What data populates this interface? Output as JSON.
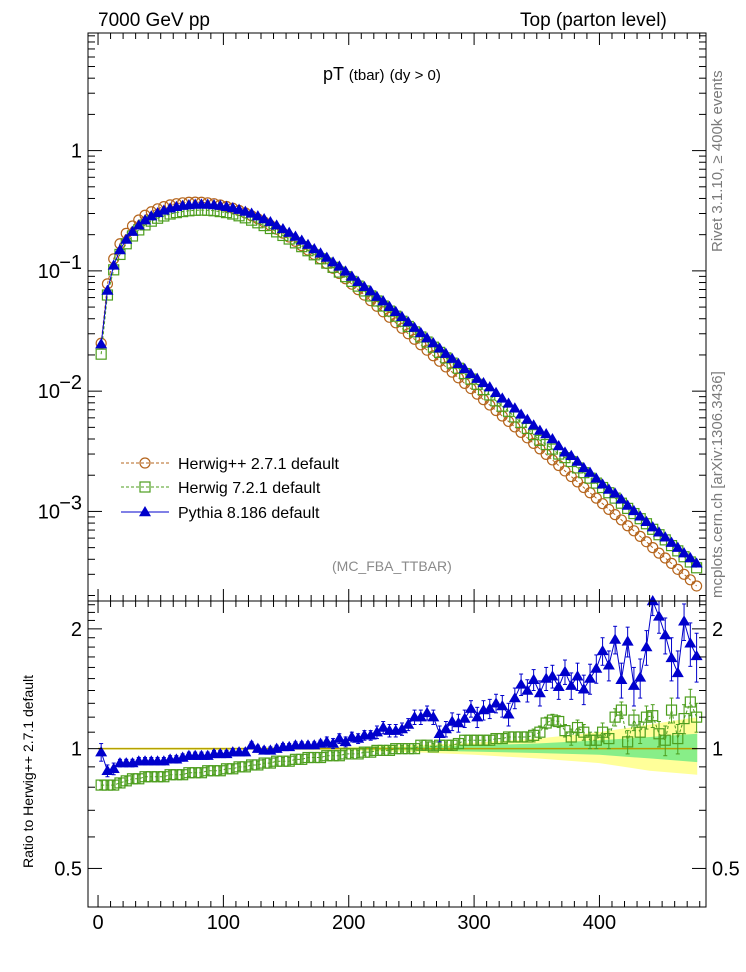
{
  "header": {
    "left": "7000 GeV pp",
    "right": "Top (parton level)"
  },
  "side": {
    "rivet": "Rivet 3.1.10, ≥ 400k events",
    "mcplots": "mcplots.cern.ch [arXiv:1306.3436]"
  },
  "plot": {
    "title_main": "pT",
    "title_tbar": "(tbar)",
    "title_cut": "(dy > 0)",
    "analysis": "(MC_FBA_TTBAR)",
    "ratio_ylabel": "Ratio to Herwig++ 2.7.1 default"
  },
  "colors": {
    "herwig_pp": "#b5651d",
    "herwig7": "#4d9e1e",
    "pythia": "#0000cc",
    "band_yellow": "#ffff99",
    "band_green": "#88ee88"
  },
  "chart_data": [
    {
      "type": "scatter",
      "panel": "main",
      "yscale": "log",
      "xlim": [
        -8,
        485
      ],
      "ylim": [
        0.00018,
        9.5
      ],
      "xticks": [
        0,
        100,
        200,
        300,
        400
      ],
      "yticks": [
        {
          "value": 1,
          "label": "1"
        },
        {
          "value": 0.1,
          "label": "10",
          "exp": "−1"
        },
        {
          "value": 0.01,
          "label": "10",
          "exp": "−2"
        },
        {
          "value": 0.001,
          "label": "10",
          "exp": "−3"
        }
      ],
      "x": [
        2.5,
        7.5,
        12.5,
        17.5,
        22.5,
        27.5,
        32.5,
        37.5,
        42.5,
        47.5,
        52.5,
        57.5,
        62.5,
        67.5,
        72.5,
        77.5,
        82.5,
        87.5,
        92.5,
        97.5,
        102.5,
        107.5,
        112.5,
        117.5,
        122.5,
        127.5,
        132.5,
        137.5,
        142.5,
        147.5,
        152.5,
        157.5,
        162.5,
        167.5,
        172.5,
        177.5,
        182.5,
        187.5,
        192.5,
        197.5,
        202.5,
        207.5,
        212.5,
        217.5,
        222.5,
        227.5,
        232.5,
        237.5,
        242.5,
        247.5,
        252.5,
        257.5,
        262.5,
        267.5,
        272.5,
        277.5,
        282.5,
        287.5,
        292.5,
        297.5,
        302.5,
        307.5,
        312.5,
        317.5,
        322.5,
        327.5,
        332.5,
        337.5,
        342.5,
        347.5,
        352.5,
        357.5,
        362.5,
        367.5,
        372.5,
        377.5,
        382.5,
        387.5,
        392.5,
        397.5,
        402.5,
        407.5,
        412.5,
        417.5,
        422.5,
        427.5,
        432.5,
        437.5,
        442.5,
        447.5,
        452.5,
        457.5,
        462.5,
        467.5,
        472.5,
        477.5
      ],
      "series": [
        {
          "name": "Herwig++ 2.7.1 default",
          "marker": "circle",
          "values": [
            0.025,
            0.078,
            0.126,
            0.168,
            0.205,
            0.236,
            0.265,
            0.29,
            0.31,
            0.328,
            0.342,
            0.354,
            0.362,
            0.368,
            0.372,
            0.373,
            0.372,
            0.368,
            0.362,
            0.353,
            0.343,
            0.332,
            0.318,
            0.303,
            0.287,
            0.271,
            0.255,
            0.239,
            0.222,
            0.206,
            0.191,
            0.176,
            0.162,
            0.149,
            0.137,
            0.126,
            0.115,
            0.105,
            0.095,
            0.086,
            0.0775,
            0.0698,
            0.0629,
            0.0565,
            0.0508,
            0.0457,
            0.0411,
            0.037,
            0.0333,
            0.03,
            0.027,
            0.0243,
            0.0219,
            0.0197,
            0.0177,
            0.0159,
            0.0144,
            0.0129,
            0.0116,
            0.0105,
            0.00945,
            0.0085,
            0.00766,
            0.0069,
            0.00621,
            0.0056,
            0.00504,
            0.00454,
            0.00409,
            0.00368,
            0.00331,
            0.00298,
            0.00268,
            0.00241,
            0.00217,
            0.00195,
            0.00176,
            0.00158,
            0.00143,
            0.00129,
            0.00116,
            0.00104,
            0.00094,
            0.00085,
            0.00076,
            0.00069,
            0.00062,
            0.00056,
            0.0005,
            0.00045,
            0.00041,
            0.00037,
            0.00033,
            0.0003,
            0.00027,
            0.00024
          ]
        },
        {
          "name": "Herwig 7.2.1 default",
          "marker": "square",
          "values": [
            0.0203,
            0.063,
            0.102,
            0.137,
            0.168,
            0.195,
            0.219,
            0.241,
            0.259,
            0.274,
            0.286,
            0.297,
            0.305,
            0.311,
            0.316,
            0.319,
            0.32,
            0.319,
            0.316,
            0.311,
            0.305,
            0.297,
            0.287,
            0.276,
            0.264,
            0.251,
            0.238,
            0.225,
            0.211,
            0.197,
            0.184,
            0.171,
            0.159,
            0.147,
            0.136,
            0.126,
            0.116,
            0.107,
            0.0977,
            0.0895,
            0.0818,
            0.0747,
            0.0681,
            0.0619,
            0.0562,
            0.051,
            0.0463,
            0.042,
            0.0381,
            0.0345,
            0.0311,
            0.0282,
            0.0256,
            0.0232,
            0.021,
            0.0189,
            0.0171,
            0.0155,
            0.014,
            0.0126,
            0.0114,
            0.0103,
            0.0093,
            0.0083,
            0.0075,
            0.0068,
            0.0061,
            0.0055,
            0.0049,
            0.00435,
            0.0039,
            0.0036,
            0.0033,
            0.003,
            0.0028,
            0.0026,
            0.0023,
            0.0021,
            0.00189,
            0.00172,
            0.00158,
            0.00143,
            0.00129,
            0.00117,
            0.00106,
            0.00096,
            0.00087,
            0.00079,
            0.00071,
            0.00064,
            0.00058,
            0.00052,
            0.00047,
            0.00042,
            0.00038,
            0.00034
          ]
        },
        {
          "name": "Pythia 8.186 default",
          "marker": "triangle",
          "values": [
            0.0246,
            0.0686,
            0.111,
            0.149,
            0.182,
            0.212,
            0.239,
            0.264,
            0.285,
            0.303,
            0.318,
            0.331,
            0.341,
            0.348,
            0.353,
            0.356,
            0.357,
            0.356,
            0.353,
            0.348,
            0.341,
            0.333,
            0.323,
            0.311,
            0.3,
            0.285,
            0.27,
            0.255,
            0.239,
            0.223,
            0.208,
            0.193,
            0.179,
            0.165,
            0.152,
            0.14,
            0.129,
            0.118,
            0.109,
            0.099,
            0.0897,
            0.0811,
            0.0737,
            0.0678,
            0.061,
            0.056,
            0.0503,
            0.0457,
            0.0415,
            0.0375,
            0.0337,
            0.0305,
            0.0276,
            0.0251,
            0.0227,
            0.0205,
            0.0186,
            0.0169,
            0.0153,
            0.0139,
            0.0127,
            0.0117,
            0.0108,
            0.0097,
            0.0087,
            0.0079,
            0.0072,
            0.0064,
            0.0058,
            0.0052,
            0.0047,
            0.0044,
            0.004,
            0.0035,
            0.0031,
            0.0029,
            0.0026,
            0.0023,
            0.0021,
            0.00188,
            0.00168,
            0.00152,
            0.00141,
            0.00126,
            0.00112,
            0.00101,
            0.00091,
            0.00082,
            0.00074,
            0.00067,
            0.00061,
            0.00055,
            0.0005,
            0.00045,
            0.00041,
            0.00037
          ]
        }
      ]
    },
    {
      "type": "scatter",
      "panel": "ratio",
      "yscale": "log",
      "ylabel": "Ratio to Herwig++ 2.7.1 default",
      "xlim": [
        -8,
        485
      ],
      "ylim": [
        0.4,
        2.35
      ],
      "xticks": [
        0,
        100,
        200,
        300,
        400
      ],
      "yticks": [
        {
          "value": 2,
          "label": "2"
        },
        {
          "value": 1,
          "label": "1"
        },
        {
          "value": 0.5,
          "label": "0.5"
        }
      ],
      "band": {
        "x": [
          0,
          100,
          200,
          250,
          300,
          350,
          400,
          440,
          478
        ],
        "yellow_lo": [
          0.995,
          0.993,
          0.99,
          0.98,
          0.965,
          0.945,
          0.92,
          0.88,
          0.86
        ],
        "yellow_hi": [
          1.005,
          1.007,
          1.01,
          1.02,
          1.035,
          1.06,
          1.1,
          1.15,
          1.2
        ],
        "green_lo": [
          0.998,
          0.997,
          0.995,
          0.99,
          0.983,
          0.975,
          0.965,
          0.945,
          0.925
        ],
        "green_hi": [
          1.002,
          1.003,
          1.005,
          1.01,
          1.02,
          1.03,
          1.05,
          1.07,
          1.09
        ]
      },
      "series": [
        {
          "name": "Herwig 7.2.1 default",
          "values": [
            0.81,
            0.81,
            0.81,
            0.82,
            0.83,
            0.84,
            0.84,
            0.85,
            0.85,
            0.85,
            0.85,
            0.86,
            0.86,
            0.86,
            0.87,
            0.87,
            0.87,
            0.88,
            0.88,
            0.88,
            0.89,
            0.89,
            0.9,
            0.9,
            0.91,
            0.91,
            0.92,
            0.92,
            0.93,
            0.93,
            0.93,
            0.94,
            0.94,
            0.95,
            0.95,
            0.95,
            0.96,
            0.96,
            0.96,
            0.97,
            0.97,
            0.97,
            0.98,
            0.98,
            0.99,
            0.99,
            0.99,
            1.0,
            1.0,
            1.0,
            1.0,
            1.02,
            1.02,
            1.01,
            1.02,
            1.02,
            1.02,
            1.03,
            1.05,
            1.05,
            1.05,
            1.05,
            1.05,
            1.06,
            1.06,
            1.07,
            1.07,
            1.07,
            1.07,
            1.08,
            1.1,
            1.16,
            1.18,
            1.17,
            1.11,
            1.07,
            1.13,
            1.1,
            1.05,
            1.05,
            1.1,
            1.06,
            1.2,
            1.25,
            1.04,
            1.18,
            1.1,
            1.2,
            1.21,
            1.09,
            1.05,
            1.25,
            1.06,
            1.19,
            1.31,
            1.2
          ],
          "errors": [
            0.02,
            0.02,
            0.02,
            0.02,
            0.02,
            0.02,
            0.02,
            0.02,
            0.02,
            0.02,
            0.02,
            0.02,
            0.02,
            0.02,
            0.02,
            0.02,
            0.02,
            0.02,
            0.02,
            0.02,
            0.02,
            0.02,
            0.02,
            0.02,
            0.02,
            0.02,
            0.02,
            0.02,
            0.02,
            0.02,
            0.02,
            0.02,
            0.02,
            0.02,
            0.02,
            0.02,
            0.02,
            0.02,
            0.02,
            0.02,
            0.02,
            0.02,
            0.02,
            0.02,
            0.02,
            0.02,
            0.02,
            0.02,
            0.02,
            0.02,
            0.02,
            0.02,
            0.02,
            0.02,
            0.02,
            0.02,
            0.03,
            0.03,
            0.03,
            0.03,
            0.03,
            0.03,
            0.03,
            0.03,
            0.03,
            0.03,
            0.03,
            0.03,
            0.03,
            0.04,
            0.04,
            0.04,
            0.04,
            0.04,
            0.04,
            0.05,
            0.05,
            0.05,
            0.05,
            0.05,
            0.06,
            0.06,
            0.06,
            0.06,
            0.07,
            0.07,
            0.07,
            0.08,
            0.08,
            0.08,
            0.09,
            0.09,
            0.09,
            0.1,
            0.1,
            0.1
          ]
        },
        {
          "name": "Pythia 8.186 default",
          "values": [
            0.98,
            0.88,
            0.89,
            0.92,
            0.92,
            0.92,
            0.93,
            0.93,
            0.93,
            0.93,
            0.93,
            0.94,
            0.94,
            0.95,
            0.96,
            0.96,
            0.96,
            0.96,
            0.97,
            0.97,
            0.97,
            0.98,
            0.98,
            0.98,
            1.02,
            1.0,
            0.99,
            0.99,
            1.0,
            1.01,
            1.01,
            1.02,
            1.02,
            1.02,
            1.02,
            1.03,
            1.04,
            1.03,
            1.06,
            1.04,
            1.07,
            1.06,
            1.08,
            1.08,
            1.1,
            1.13,
            1.11,
            1.11,
            1.12,
            1.15,
            1.2,
            1.2,
            1.23,
            1.2,
            1.09,
            1.12,
            1.17,
            1.16,
            1.19,
            1.26,
            1.2,
            1.25,
            1.26,
            1.3,
            1.28,
            1.22,
            1.34,
            1.45,
            1.4,
            1.49,
            1.38,
            1.5,
            1.52,
            1.43,
            1.56,
            1.44,
            1.52,
            1.41,
            1.5,
            1.59,
            1.76,
            1.62,
            1.88,
            1.49,
            1.86,
            1.44,
            1.51,
            1.8,
            2.35,
            2.15,
            1.93,
            1.69,
            1.55,
            2.09,
            1.84,
            1.71
          ],
          "errors": [
            0.05,
            0.03,
            0.03,
            0.02,
            0.02,
            0.02,
            0.02,
            0.02,
            0.02,
            0.02,
            0.02,
            0.02,
            0.02,
            0.02,
            0.02,
            0.02,
            0.02,
            0.02,
            0.02,
            0.02,
            0.02,
            0.02,
            0.02,
            0.02,
            0.02,
            0.02,
            0.02,
            0.02,
            0.02,
            0.02,
            0.02,
            0.02,
            0.02,
            0.02,
            0.02,
            0.02,
            0.03,
            0.03,
            0.03,
            0.03,
            0.03,
            0.03,
            0.03,
            0.03,
            0.04,
            0.04,
            0.04,
            0.04,
            0.04,
            0.04,
            0.05,
            0.05,
            0.05,
            0.05,
            0.05,
            0.05,
            0.06,
            0.06,
            0.06,
            0.06,
            0.07,
            0.07,
            0.07,
            0.07,
            0.08,
            0.08,
            0.08,
            0.09,
            0.09,
            0.09,
            0.1,
            0.1,
            0.1,
            0.1,
            0.11,
            0.11,
            0.12,
            0.12,
            0.13,
            0.13,
            0.14,
            0.14,
            0.15,
            0.15,
            0.16,
            0.16,
            0.17,
            0.18,
            0.19,
            0.2,
            0.2,
            0.21,
            0.21,
            0.22,
            0.23,
            0.24
          ]
        }
      ]
    }
  ]
}
